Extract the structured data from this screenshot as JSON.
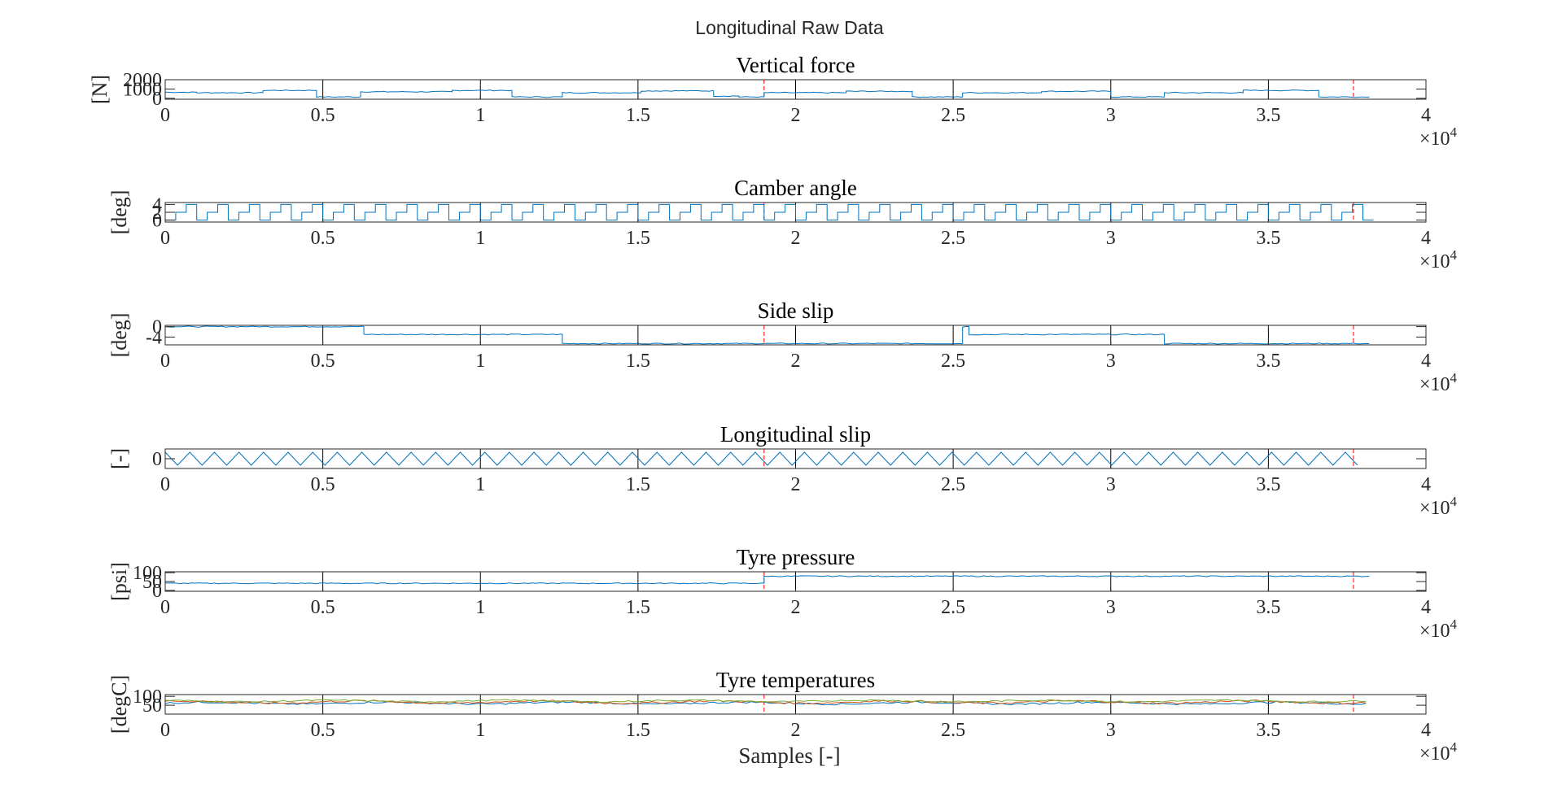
{
  "figure": {
    "suptitle": "Longitudinal Raw Data",
    "xlabel": "Samples [-]",
    "x_multiplier_base": "×10",
    "x_multiplier_exp": "4"
  },
  "colors": {
    "series1": "#0072BD",
    "series2": "#D95319",
    "series3": "#77AC30",
    "marker": "#FF0000",
    "grid": "#000000"
  },
  "chart_data": [
    {
      "type": "line",
      "title": "Vertical force",
      "ylabel": "[N]",
      "xlim": [
        0,
        40000
      ],
      "ylim": [
        -100,
        2000
      ],
      "x_ticks": [
        0,
        5000,
        10000,
        15000,
        20000,
        25000,
        30000,
        35000,
        40000
      ],
      "x_tick_labels": [
        "0",
        "0.5",
        "1",
        "1.5",
        "2",
        "2.5",
        "3",
        "3.5",
        "4"
      ],
      "y_ticks": [
        0,
        1000,
        2000
      ],
      "y_tick_labels": [
        "0",
        "1000",
        "2000"
      ],
      "markers_x": [
        19000,
        37700
      ],
      "series": [
        {
          "segments": [
            [
              0,
              650
            ],
            [
              1000,
              600
            ],
            [
              3100,
              850
            ],
            [
              4800,
              150
            ],
            [
              6200,
              700
            ],
            [
              9100,
              850
            ],
            [
              11000,
              150
            ],
            [
              12600,
              600
            ],
            [
              15100,
              800
            ],
            [
              17400,
              250
            ],
            [
              18200,
              150
            ],
            [
              19000,
              600
            ],
            [
              21600,
              750
            ],
            [
              23700,
              150
            ],
            [
              25300,
              600
            ],
            [
              27800,
              750
            ],
            [
              30000,
              150
            ],
            [
              31700,
              600
            ],
            [
              34200,
              850
            ],
            [
              36600,
              150
            ],
            [
              38200,
              150
            ]
          ]
        }
      ]
    },
    {
      "type": "line",
      "title": "Camber angle",
      "ylabel": "[deg]",
      "xlim": [
        0,
        40000
      ],
      "ylim": [
        -0.5,
        4.5
      ],
      "x_ticks": [
        0,
        5000,
        10000,
        15000,
        20000,
        25000,
        30000,
        35000,
        40000
      ],
      "x_tick_labels": [
        "0",
        "0.5",
        "1",
        "1.5",
        "2",
        "2.5",
        "3",
        "3.5",
        "4"
      ],
      "y_ticks": [
        0,
        2,
        4
      ],
      "y_tick_labels": [
        "0",
        "2",
        "4"
      ],
      "markers_x": [
        19000,
        37700
      ],
      "period": 1000,
      "series": [
        {
          "levels": [
            0,
            2,
            4
          ]
        }
      ]
    },
    {
      "type": "line",
      "title": "Side slip",
      "ylabel": "[deg]",
      "xlim": [
        0,
        40000
      ],
      "ylim": [
        -7,
        0.5
      ],
      "x_ticks": [
        0,
        5000,
        10000,
        15000,
        20000,
        25000,
        30000,
        35000,
        40000
      ],
      "x_tick_labels": [
        "0",
        "0.5",
        "1",
        "1.5",
        "2",
        "2.5",
        "3",
        "3.5",
        "4"
      ],
      "y_ticks": [
        -4,
        0
      ],
      "y_tick_labels": [
        "-4",
        "0"
      ],
      "markers_x": [
        19000,
        37700
      ],
      "series": [
        {
          "segments": [
            [
              0,
              0
            ],
            [
              6300,
              -3
            ],
            [
              12600,
              -6.5
            ],
            [
              19000,
              -6.5
            ],
            [
              25300,
              0
            ],
            [
              25500,
              -3
            ],
            [
              31700,
              -6.5
            ],
            [
              38200,
              -6.5
            ]
          ]
        }
      ]
    },
    {
      "type": "line",
      "title": "Longitudinal slip",
      "ylabel": "[-]",
      "xlim": [
        0,
        40000
      ],
      "ylim": [
        -0.3,
        0.3
      ],
      "x_ticks": [
        0,
        5000,
        10000,
        15000,
        20000,
        25000,
        30000,
        35000,
        40000
      ],
      "x_tick_labels": [
        "0",
        "0.5",
        "1",
        "1.5",
        "2",
        "2.5",
        "3",
        "3.5",
        "4"
      ],
      "y_ticks": [
        0
      ],
      "y_tick_labels": [
        "0"
      ],
      "markers_x": [
        19000,
        37700
      ],
      "period": 780,
      "amplitude": 0.2,
      "series": [
        {
          "name": ""
        }
      ]
    },
    {
      "type": "line",
      "title": "Tyre pressure",
      "ylabel": "[psi]",
      "xlim": [
        0,
        40000
      ],
      "ylim": [
        -5,
        105
      ],
      "x_ticks": [
        0,
        5000,
        10000,
        15000,
        20000,
        25000,
        30000,
        35000,
        40000
      ],
      "x_tick_labels": [
        "0",
        "0.5",
        "1",
        "1.5",
        "2",
        "2.5",
        "3",
        "3.5",
        "4"
      ],
      "y_ticks": [
        0,
        50,
        100
      ],
      "y_tick_labels": [
        "0",
        "50",
        "100"
      ],
      "markers_x": [
        19000,
        37700
      ],
      "series": [
        {
          "segments": [
            [
              0,
              40
            ],
            [
              19000,
              80
            ],
            [
              38200,
              80
            ]
          ]
        }
      ]
    },
    {
      "type": "line",
      "title": "Tyre temperatures",
      "ylabel": "[degC]",
      "xlim": [
        0,
        40000
      ],
      "ylim": [
        0,
        110
      ],
      "x_ticks": [
        0,
        5000,
        10000,
        15000,
        20000,
        25000,
        30000,
        35000,
        40000
      ],
      "x_tick_labels": [
        "0",
        "0.5",
        "1",
        "1.5",
        "2",
        "2.5",
        "3",
        "3.5",
        "4"
      ],
      "y_ticks": [
        50,
        100
      ],
      "y_tick_labels": [
        "50",
        "100"
      ],
      "markers_x": [
        19000,
        37700
      ],
      "series": [
        {
          "base": 62,
          "spread": 10
        },
        {
          "base": 68,
          "spread": 12
        },
        {
          "base": 74,
          "spread": 8
        }
      ]
    }
  ]
}
